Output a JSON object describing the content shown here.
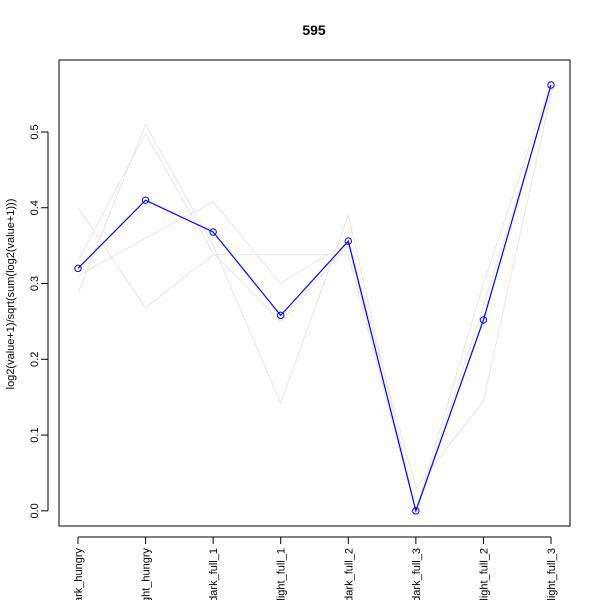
{
  "chart_data": {
    "type": "line",
    "title": "595",
    "xlabel": "",
    "ylabel": "log2(value+1)/sqrt(sum(log2(value+1)))",
    "categories": [
      "dark_hungry",
      "light_hungry",
      "dark_full_1",
      "light_full_1",
      "dark_full_2",
      "dark_full_3",
      "light_full_2",
      "light_full_3"
    ],
    "ylim": [
      -0.02,
      0.595
    ],
    "yticks": [
      0.0,
      0.1,
      0.2,
      0.3,
      0.4,
      0.5
    ],
    "ytick_labels": [
      "0.0",
      "0.1",
      "0.2",
      "0.3",
      "0.4",
      "0.5"
    ],
    "grid": false,
    "legend": "none",
    "series": [
      {
        "values": [
          0.32,
          0.41,
          0.368,
          0.258,
          0.356,
          0.0,
          0.252,
          0.562
        ],
        "color": "#0000ff",
        "highlighted": true
      },
      {
        "values": [
          0.4,
          0.268,
          0.338,
          0.338,
          0.338,
          0.0,
          0.25,
          0.56
        ],
        "color": "#e6e6e6",
        "highlighted": false
      },
      {
        "values": [
          0.287,
          0.51,
          0.35,
          0.142,
          0.39,
          0.0,
          0.27,
          0.555
        ],
        "color": "#e6e6e6",
        "highlighted": false
      },
      {
        "values": [
          0.31,
          0.36,
          0.408,
          0.3,
          0.355,
          0.03,
          0.145,
          0.55
        ],
        "color": "#e6e6e6",
        "highlighted": false
      },
      {
        "values": [
          0.33,
          0.498,
          0.34,
          0.25,
          0.35,
          0.0,
          0.3,
          0.565
        ],
        "color": "#e6e6e6",
        "highlighted": false
      }
    ]
  }
}
